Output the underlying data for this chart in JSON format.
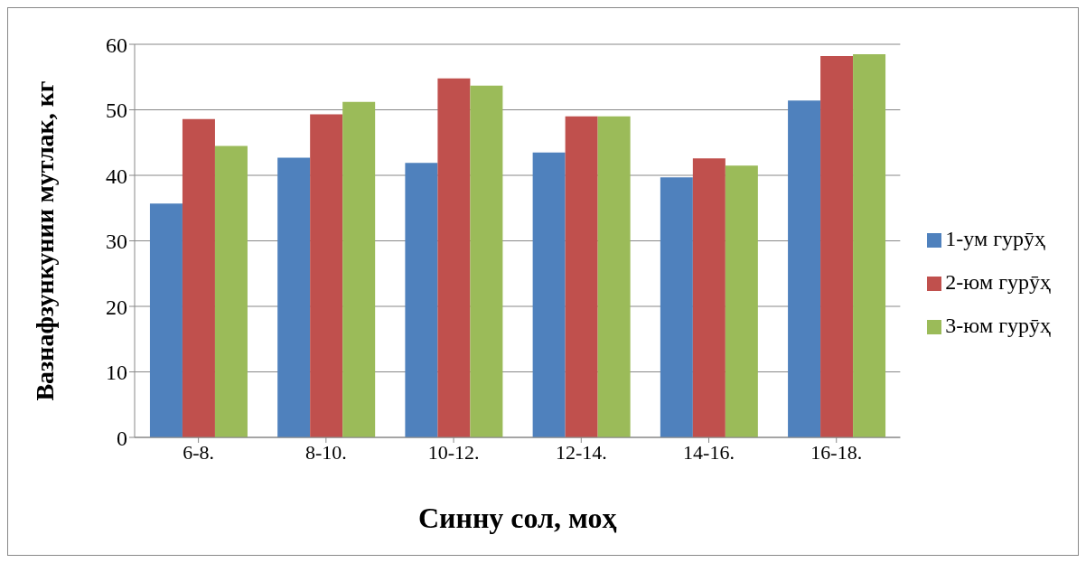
{
  "chart_data": {
    "type": "bar",
    "xlabel": "Синну сол, моҳ",
    "ylabel": "Вазнафзункунии мутлак, кг",
    "categories": [
      "6-8.",
      "8-10.",
      "10-12.",
      "12-14.",
      "14-16.",
      "16-18."
    ],
    "series": [
      {
        "name": "1-ум гурӯҳ",
        "color": "#4f81bd",
        "values": [
          35.7,
          42.7,
          41.9,
          43.5,
          39.7,
          51.4
        ]
      },
      {
        "name": "2-юм гурӯҳ",
        "color": "#c0504d",
        "values": [
          48.6,
          49.3,
          54.8,
          49.0,
          42.6,
          58.2
        ]
      },
      {
        "name": "3-юм гурӯҳ",
        "color": "#9bbb59",
        "values": [
          44.5,
          51.2,
          53.7,
          49.0,
          41.5,
          58.5
        ]
      }
    ],
    "ylim": [
      0,
      60
    ],
    "yticks": [
      0,
      10,
      20,
      30,
      40,
      50,
      60
    ],
    "grid": "y",
    "legend": "right"
  }
}
